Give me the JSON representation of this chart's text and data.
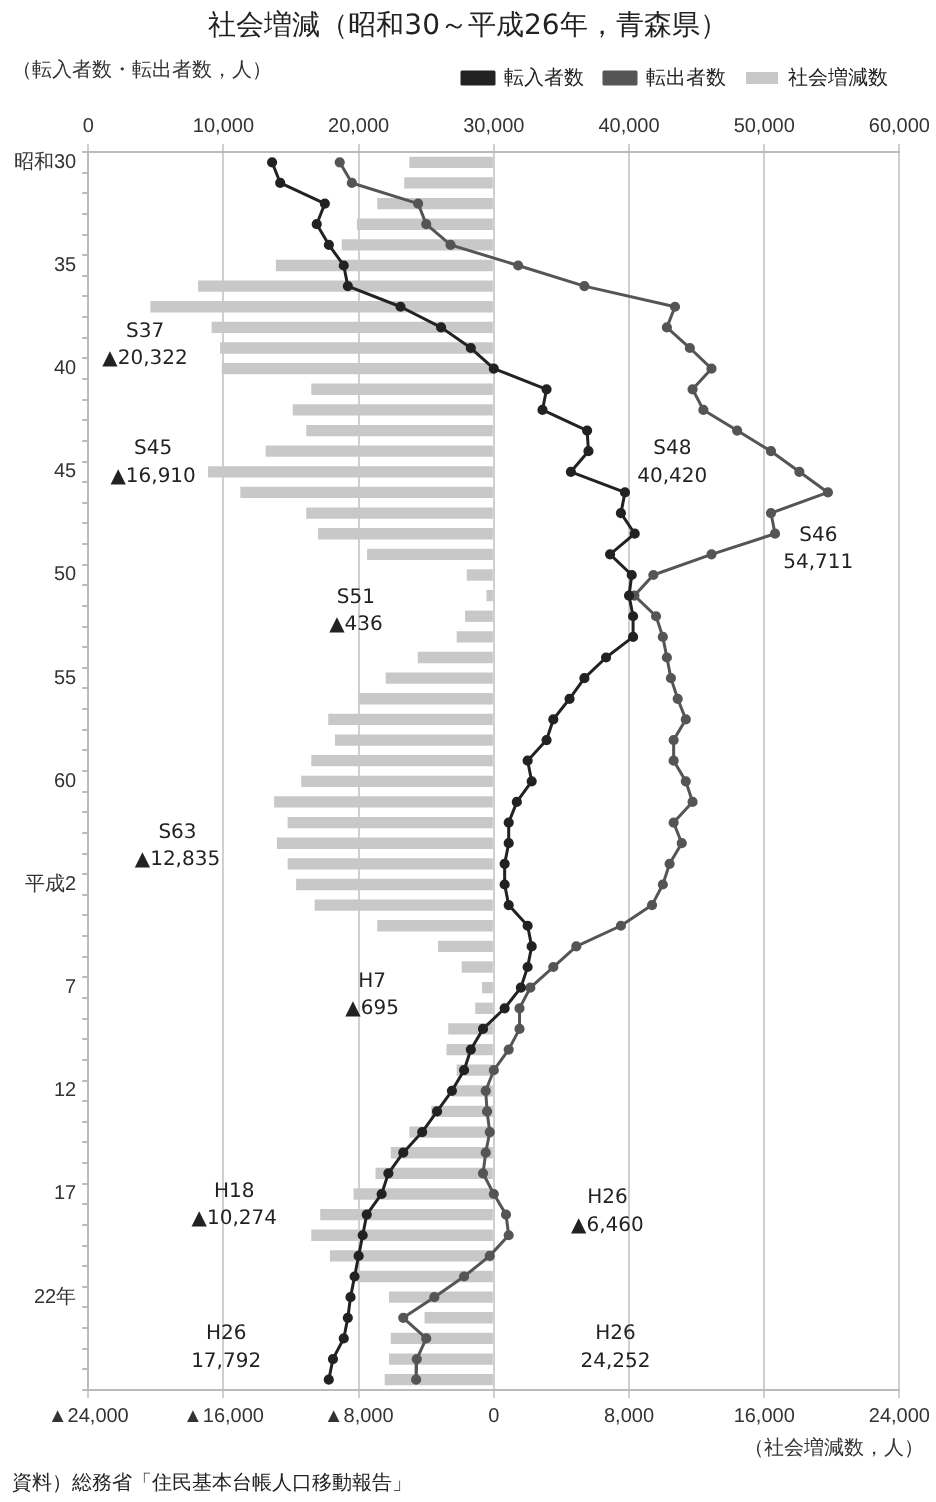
{
  "chart_data": {
    "type": "line",
    "orientation": "horizontal",
    "title": "社会増減（昭和30～平成26年，青森県）",
    "x2label": "（転入者数・転出者数，人）",
    "xlabel": "（社会増減数，人）",
    "categories": [
      "昭和30",
      null,
      null,
      null,
      null,
      "35",
      null,
      null,
      null,
      null,
      "40",
      null,
      null,
      null,
      null,
      "45",
      null,
      null,
      null,
      null,
      "50",
      null,
      null,
      null,
      null,
      "55",
      null,
      null,
      null,
      null,
      "60",
      null,
      null,
      null,
      null,
      "平成2",
      null,
      null,
      null,
      null,
      "7",
      null,
      null,
      null,
      null,
      "12",
      null,
      null,
      null,
      null,
      "17",
      null,
      null,
      null,
      null,
      "22年",
      null,
      null,
      null,
      null
    ],
    "series": [
      {
        "name": "社会増減数",
        "type": "bar",
        "color": "#c8c8c8",
        "values": [
          -5000,
          -5300,
          -6900,
          -8100,
          -9000,
          -12900,
          -17500,
          -20322,
          -16700,
          -16200,
          -16100,
          -10800,
          -11900,
          -11100,
          -13500,
          -16910,
          -15000,
          -11100,
          -10400,
          -7500,
          -1600,
          -436,
          -1700,
          -2200,
          -4500,
          -6400,
          -8000,
          -9800,
          -9400,
          -10800,
          -11400,
          -13000,
          -12200,
          -12835,
          -12200,
          -11700,
          -10600,
          -6900,
          -3300,
          -1900,
          -695,
          -1100,
          -2700,
          -2800,
          -2200,
          -2500,
          -3700,
          -5000,
          -6100,
          -7000,
          -8300,
          -10274,
          -10800,
          -9700,
          -8100,
          -6200,
          -4100,
          -6100,
          -6200,
          -6460
        ]
      },
      {
        "name": "転入者数",
        "axis": "x2",
        "color": "#222222",
        "values": [
          13600,
          14200,
          17500,
          16900,
          17800,
          18900,
          19200,
          23100,
          26100,
          28300,
          30000,
          33900,
          33600,
          36900,
          37000,
          35700,
          39700,
          39400,
          40420,
          38600,
          40200,
          40000,
          40300,
          40300,
          38300,
          36700,
          35600,
          34400,
          33900,
          32500,
          32800,
          31700,
          31100,
          31100,
          30800,
          30800,
          31100,
          32500,
          32800,
          32500,
          32000,
          30800,
          29200,
          28300,
          27800,
          26900,
          25800,
          24700,
          23300,
          22200,
          21700,
          20600,
          20300,
          20000,
          19700,
          19400,
          19200,
          18900,
          18100,
          17792
        ]
      },
      {
        "name": "転出者数",
        "axis": "x2",
        "color": "#555555",
        "values": [
          18600,
          19500,
          24400,
          25000,
          26800,
          31800,
          36700,
          43400,
          42800,
          44500,
          46100,
          44700,
          45500,
          48000,
          50500,
          52600,
          54711,
          50500,
          50800,
          46100,
          41800,
          40400,
          42000,
          42500,
          42800,
          43100,
          43600,
          44200,
          43300,
          43300,
          44200,
          44700,
          43300,
          43900,
          43000,
          42500,
          41700,
          39400,
          36100,
          34400,
          32700,
          31900,
          31900,
          31100,
          30000,
          29400,
          29500,
          29700,
          29400,
          29200,
          30000,
          30900,
          31100,
          29700,
          27800,
          25600,
          23300,
          25000,
          24300,
          24252
        ]
      }
    ],
    "x2lim": [
      0,
      60000
    ],
    "x2ticks": [
      0,
      {
        "value": 10000,
        "label": "10,000"
      },
      {
        "value": 20000,
        "label": "20,000"
      },
      {
        "value": 30000,
        "label": "30,000"
      },
      {
        "value": 40000,
        "label": "40,000"
      },
      {
        "value": 50000,
        "label": "50,000"
      },
      {
        "value": 60000,
        "label": "60,000"
      }
    ],
    "xlim": [
      -24000,
      24000
    ],
    "xticks": [
      {
        "value": -24000,
        "label": "▲24,000"
      },
      {
        "value": -16000,
        "label": "▲16,000"
      },
      {
        "value": -8000,
        "label": "▲8,000"
      },
      0,
      {
        "value": 8000,
        "label": "8,000"
      },
      {
        "value": 16000,
        "label": "16,000"
      },
      {
        "value": 24000,
        "label": "24,000"
      }
    ],
    "grid": "x",
    "legend": "top",
    "marker": "circle",
    "annotations": [
      "S37",
      "▲20,322",
      "S45",
      "▲16,910",
      "S46",
      "54,711",
      "S48",
      "40,420",
      "S51",
      "▲436",
      "S63",
      "▲12,835",
      "H7",
      "▲695",
      "H18",
      "▲10,274",
      "H26",
      "▲6,460",
      "H26",
      "24,252",
      "H26",
      "17,792",
      "資料）総務省「住民基本台帳人口移動報告」"
    ]
  }
}
